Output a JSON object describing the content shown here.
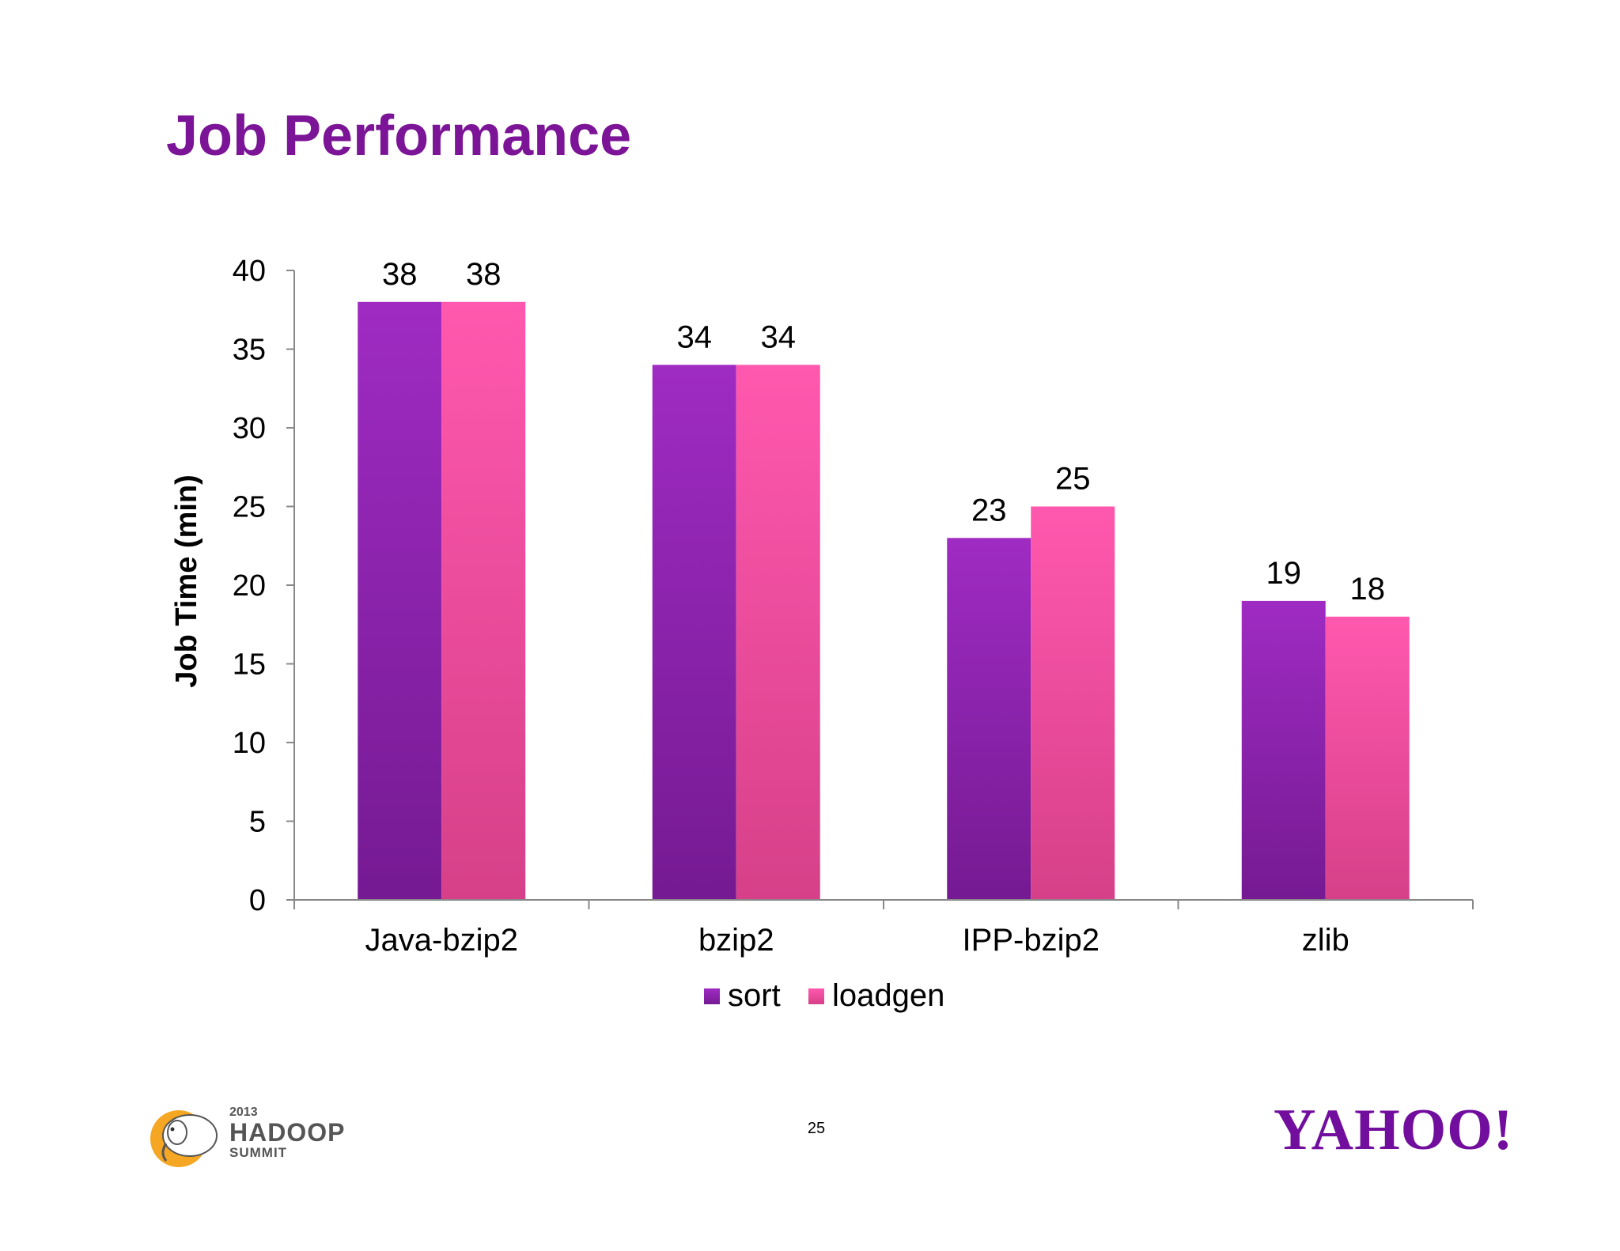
{
  "slide": {
    "title": "Job Performance",
    "page_number": "25"
  },
  "footer": {
    "hadoop_year": "2013",
    "hadoop_name": "HADOOP",
    "hadoop_summit": "SUMMIT",
    "yahoo_logo": "YAHOO!"
  },
  "colors": {
    "title": "#7b1496",
    "sort_top": "#9f2bc3",
    "sort_bottom": "#751a92",
    "loadgen_top": "#ff58ae",
    "loadgen_bottom": "#d64089",
    "axis": "#888888"
  },
  "chart_data": {
    "type": "bar",
    "title": "",
    "xlabel": "",
    "ylabel": "Job Time (min)",
    "ylim": [
      0,
      40
    ],
    "yticks": [
      0,
      5,
      10,
      15,
      20,
      25,
      30,
      35,
      40
    ],
    "categories": [
      "Java-bzip2",
      "bzip2",
      "IPP-bzip2",
      "zlib"
    ],
    "series": [
      {
        "name": "sort",
        "values": [
          38,
          34,
          23,
          19
        ]
      },
      {
        "name": "loadgen",
        "values": [
          38,
          34,
          25,
          18
        ]
      }
    ],
    "legend_position": "bottom",
    "grid": false,
    "data_labels": true
  }
}
